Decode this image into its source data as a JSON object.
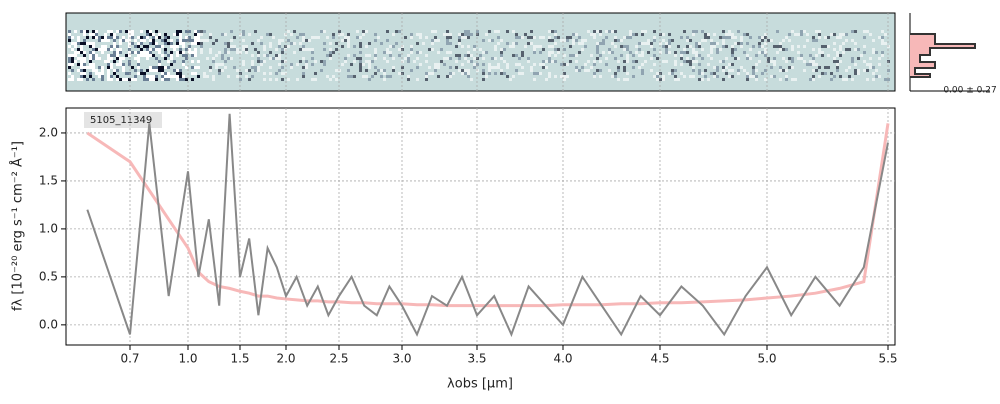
{
  "chart_data": {
    "type": "line",
    "annotation": "5105_11349",
    "side_annotation": "0.00 ± 0.27",
    "x_label": "λobs [μm]",
    "y_label": "fλ [10⁻²⁰ erg s⁻¹ cm⁻² Å⁻¹]",
    "xlim": [
      0.55,
      5.53
    ],
    "ylim": [
      -0.21,
      2.26
    ],
    "xticks": [
      0.7,
      {
        "value": 1,
        "label": "1.0"
      },
      1.5,
      {
        "value": 2,
        "label": "2.0"
      },
      2.5,
      {
        "value": 3,
        "label": "3.0"
      },
      3.5,
      {
        "value": 4,
        "label": "4.0"
      },
      4.5,
      {
        "value": 5,
        "label": "5.0"
      },
      5.5
    ],
    "yticks": [
      {
        "value": 0,
        "label": "0.0"
      },
      0.5,
      {
        "value": 1,
        "label": "1.0"
      },
      1.5,
      {
        "value": 2,
        "label": "2.0"
      }
    ],
    "grid": true,
    "x": [
      0.6,
      0.7,
      0.8,
      0.9,
      1.0,
      1.1,
      1.2,
      1.3,
      1.4,
      1.5,
      1.6,
      1.7,
      1.8,
      1.9,
      2.0,
      2.1,
      2.2,
      2.3,
      2.4,
      2.5,
      2.6,
      2.7,
      2.8,
      2.9,
      3.0,
      3.1,
      3.2,
      3.3,
      3.4,
      3.5,
      3.6,
      3.7,
      3.8,
      3.9,
      4.0,
      4.1,
      4.2,
      4.3,
      4.4,
      4.5,
      4.6,
      4.7,
      4.8,
      4.9,
      5.0,
      5.1,
      5.2,
      5.3,
      5.4,
      5.5
    ],
    "series": [
      {
        "color": "#f7b8b8",
        "values": [
          2.0,
          1.7,
          1.4,
          1.1,
          0.8,
          0.55,
          0.45,
          0.4,
          0.38,
          0.35,
          0.33,
          0.3,
          0.3,
          0.28,
          0.27,
          0.26,
          0.25,
          0.25,
          0.24,
          0.24,
          0.23,
          0.23,
          0.22,
          0.22,
          0.22,
          0.21,
          0.21,
          0.2,
          0.2,
          0.2,
          0.2,
          0.2,
          0.2,
          0.2,
          0.21,
          0.21,
          0.21,
          0.22,
          0.22,
          0.23,
          0.23,
          0.24,
          0.25,
          0.26,
          0.28,
          0.3,
          0.33,
          0.38,
          0.45,
          2.1
        ]
      },
      {
        "color": "#888888",
        "values": [
          1.2,
          -0.1,
          2.1,
          0.3,
          1.6,
          0.5,
          1.1,
          0.2,
          2.2,
          0.5,
          0.9,
          0.1,
          0.8,
          0.6,
          0.3,
          0.5,
          0.2,
          0.4,
          0.1,
          0.3,
          0.5,
          0.2,
          0.1,
          0.4,
          0.2,
          -0.1,
          0.3,
          0.2,
          0.5,
          0.1,
          0.3,
          -0.1,
          0.4,
          0.2,
          0.0,
          0.5,
          0.2,
          -0.1,
          0.3,
          0.1,
          0.4,
          0.2,
          -0.1,
          0.3,
          0.6,
          0.1,
          0.5,
          0.2,
          0.6,
          1.9
        ]
      }
    ]
  }
}
